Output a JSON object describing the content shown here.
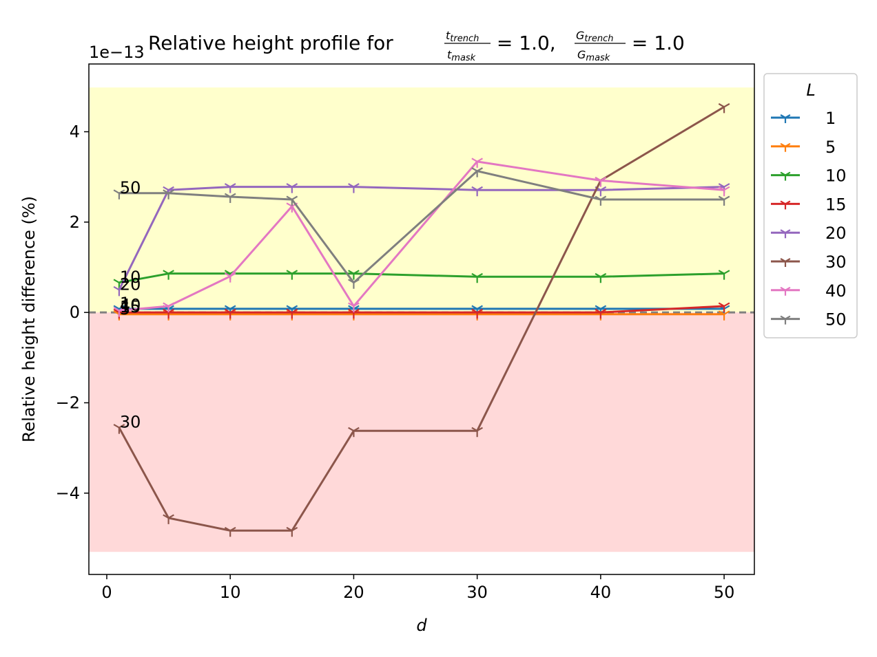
{
  "chart_data": {
    "type": "line",
    "title": {
      "prefix": "Relative height profile for ",
      "frac1_num": "t",
      "frac1_num_sub": "trench",
      "frac1_den": "t",
      "frac1_den_sub": "mask",
      "eq1": " = 1.0, ",
      "frac2_num": "G",
      "frac2_num_sub": "trench",
      "frac2_den": "G",
      "frac2_den_sub": "mask",
      "eq2": " = 1.0"
    },
    "xlabel": "d",
    "ylabel": "Relative height difference (%)",
    "y_offset_label": "1e−13",
    "xlim": [
      -1.45,
      52.45
    ],
    "ylim": [
      -5.8,
      5.5
    ],
    "x_ticks": [
      0,
      10,
      20,
      30,
      40,
      50
    ],
    "x_tick_labels": [
      "0",
      "10",
      "20",
      "30",
      "40",
      "50"
    ],
    "y_ticks": [
      -4,
      -2,
      0,
      2,
      4
    ],
    "y_tick_labels": [
      "−4",
      "−2",
      "0",
      "2",
      "4"
    ],
    "bands": [
      {
        "y0": 0,
        "y1": 4.98,
        "color": "#ffff99",
        "opacity": 0.5
      },
      {
        "y0": -5.3,
        "y1": 0,
        "color": "#ffb3b3",
        "opacity": 0.5
      }
    ],
    "zero_line_color": "#808080",
    "x": [
      1,
      5,
      10,
      15,
      20,
      30,
      40,
      50
    ],
    "legend_title": "L",
    "legend_position": "outside-right",
    "series": [
      {
        "name": "1",
        "color": "#1f77b4",
        "values": [
          0.08,
          0.08,
          0.08,
          0.08,
          0.08,
          0.08,
          0.08,
          0.08
        ]
      },
      {
        "name": "5",
        "color": "#ff7f0e",
        "values": [
          -0.04,
          -0.04,
          -0.04,
          -0.04,
          -0.04,
          -0.04,
          -0.04,
          -0.04
        ]
      },
      {
        "name": "10",
        "color": "#2ca02c",
        "values": [
          0.66,
          0.86,
          0.86,
          0.86,
          0.86,
          0.79,
          0.79,
          0.86
        ]
      },
      {
        "name": "15",
        "color": "#d62728",
        "values": [
          0.0,
          0.0,
          0.0,
          0.0,
          0.0,
          0.0,
          0.0,
          0.14
        ]
      },
      {
        "name": "20",
        "color": "#9467bd",
        "values": [
          0.5,
          2.71,
          2.78,
          2.78,
          2.78,
          2.71,
          2.71,
          2.78
        ]
      },
      {
        "name": "30",
        "color": "#8c564b",
        "values": [
          -2.55,
          -4.55,
          -4.83,
          -4.83,
          -2.62,
          -2.62,
          2.92,
          4.55
        ]
      },
      {
        "name": "40",
        "color": "#e377c2",
        "values": [
          0.04,
          0.14,
          0.8,
          2.35,
          0.14,
          3.34,
          2.92,
          2.71
        ]
      },
      {
        "name": "50",
        "color": "#7f7f7f",
        "values": [
          2.64,
          2.64,
          2.56,
          2.5,
          0.66,
          3.13,
          2.5,
          2.5
        ]
      }
    ],
    "annotations": [
      {
        "text": "1",
        "x": 1,
        "y": 0.08
      },
      {
        "text": "5",
        "x": 1,
        "y": -0.04
      },
      {
        "text": "10",
        "x": 1,
        "y": 0.66
      },
      {
        "text": "15",
        "x": 1,
        "y": 0.0
      },
      {
        "text": "20",
        "x": 1,
        "y": 0.5
      },
      {
        "text": "30",
        "x": 1,
        "y": -2.55
      },
      {
        "text": "40",
        "x": 1,
        "y": 0.04
      },
      {
        "text": "50",
        "x": 1,
        "y": 2.64
      }
    ]
  }
}
